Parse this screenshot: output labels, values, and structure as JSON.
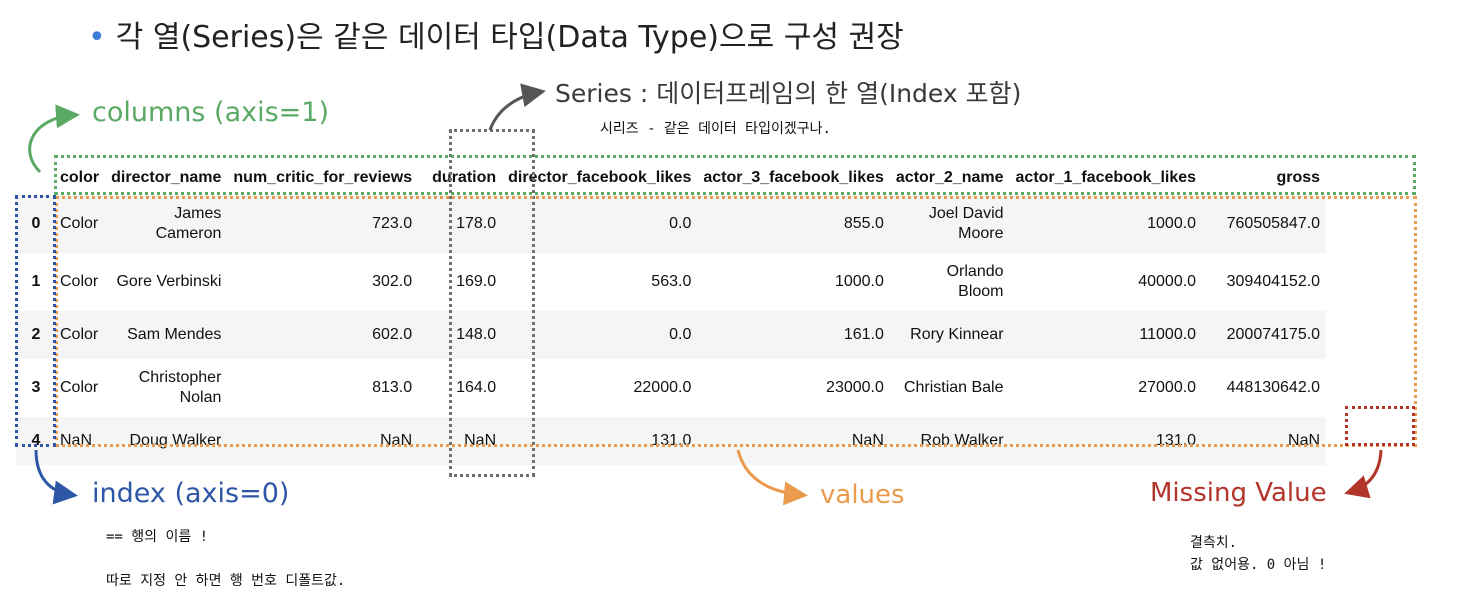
{
  "heading": {
    "bullet": "•",
    "text": "각 열(Series)은 같은 데이터 타입(Data Type)으로 구성 권장"
  },
  "series_label": {
    "title": "Series : 데이터프레임의 한 열(Index 포함)",
    "note": "시리즈 - 같은 데이터 타입이겠구나."
  },
  "columns_label": "columns (axis=1)",
  "index_label": {
    "title": "index (axis=0)",
    "note1": "== 행의 이름 !",
    "note2": "따로 지정 안 하면 행 번호 디폴트값."
  },
  "values_label": "values",
  "missing_label": {
    "title": "Missing Value",
    "note1": "결측치.",
    "note2": "값 없어용. 0 아님 !"
  },
  "table": {
    "columns": [
      "color",
      "director_name",
      "num_critic_for_reviews",
      "duration",
      "director_facebook_likes",
      "actor_3_facebook_likes",
      "actor_2_name",
      "actor_1_facebook_likes",
      "gross"
    ],
    "rows": [
      {
        "index": "0",
        "color": "Color",
        "director_name": [
          "James",
          "Cameron"
        ],
        "num_critic_for_reviews": "723.0",
        "duration": "178.0",
        "director_facebook_likes": "0.0",
        "actor_3_facebook_likes": "855.0",
        "actor_2_name": [
          "Joel David",
          "Moore"
        ],
        "actor_1_facebook_likes": "1000.0",
        "gross": "760505847.0"
      },
      {
        "index": "1",
        "color": "Color",
        "director_name": [
          "Gore Verbinski"
        ],
        "num_critic_for_reviews": "302.0",
        "duration": "169.0",
        "director_facebook_likes": "563.0",
        "actor_3_facebook_likes": "1000.0",
        "actor_2_name": [
          "Orlando",
          "Bloom"
        ],
        "actor_1_facebook_likes": "40000.0",
        "gross": "309404152.0"
      },
      {
        "index": "2",
        "color": "Color",
        "director_name": [
          "Sam Mendes"
        ],
        "num_critic_for_reviews": "602.0",
        "duration": "148.0",
        "director_facebook_likes": "0.0",
        "actor_3_facebook_likes": "161.0",
        "actor_2_name": [
          "Rory Kinnear"
        ],
        "actor_1_facebook_likes": "11000.0",
        "gross": "200074175.0"
      },
      {
        "index": "3",
        "color": "Color",
        "director_name": [
          "Christopher",
          "Nolan"
        ],
        "num_critic_for_reviews": "813.0",
        "duration": "164.0",
        "director_facebook_likes": "22000.0",
        "actor_3_facebook_likes": "23000.0",
        "actor_2_name": [
          "Christian Bale"
        ],
        "actor_1_facebook_likes": "27000.0",
        "gross": "448130642.0"
      },
      {
        "index": "4",
        "color": "NaN",
        "director_name": [
          "Doug Walker"
        ],
        "num_critic_for_reviews": "NaN",
        "duration": "NaN",
        "director_facebook_likes": "131.0",
        "actor_3_facebook_likes": "NaN",
        "actor_2_name": [
          "Rob Walker"
        ],
        "actor_1_facebook_likes": "131.0",
        "gross": "NaN"
      }
    ]
  },
  "colors": {
    "columns": "#5aa964",
    "index": "#2d56a7",
    "values": "#eb9b4d",
    "series": "#707070",
    "missing": "#b33429",
    "bullet": "#3b7dd8"
  }
}
